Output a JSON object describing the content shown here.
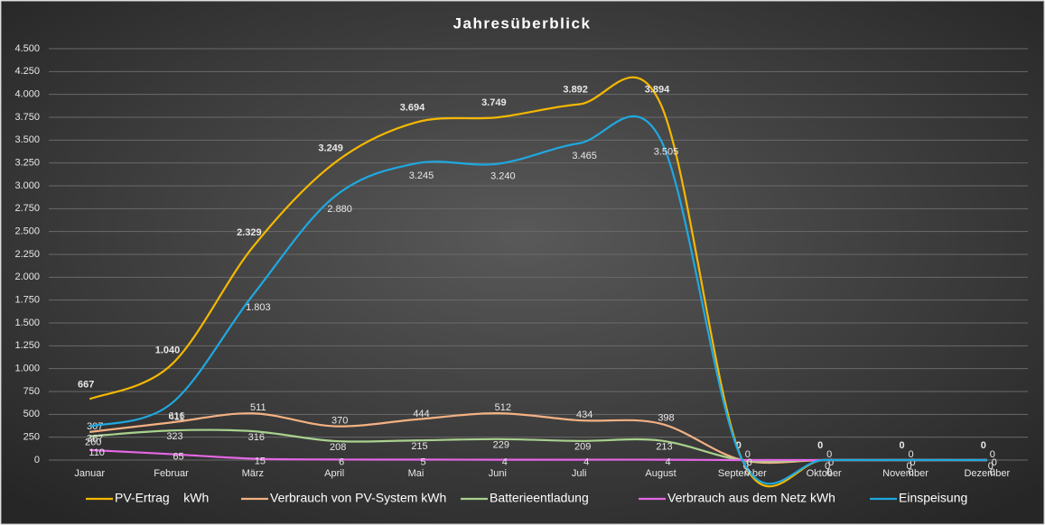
{
  "chart_data": {
    "type": "line",
    "title": "Jahresüberblick",
    "categories": [
      "Januar",
      "Februar",
      "März",
      "April",
      "Mai",
      "Juni",
      "Juli",
      "August",
      "September",
      "Oktober",
      "November",
      "Dezember"
    ],
    "series": [
      {
        "name": "PV-Ertrag    kWh",
        "color": "#f5b800",
        "values": [
          667,
          1040,
          2329,
          3249,
          3694,
          3749,
          3892,
          3894,
          0,
          0,
          0,
          0
        ],
        "value_labels": [
          "667",
          "1.040",
          "2.329",
          "3.249",
          "3.694",
          "3.749",
          "3.892",
          "3.894",
          "0",
          "0",
          "0",
          "0"
        ]
      },
      {
        "name": "Verbrauch von PV-System kWh",
        "color": "#f4b183",
        "values": [
          307,
          411,
          511,
          370,
          444,
          512,
          434,
          398,
          0,
          0,
          0,
          0
        ]
      },
      {
        "name": "Batterieentladung",
        "color": "#a9d18e",
        "values": [
          260,
          323,
          316,
          208,
          215,
          229,
          209,
          213,
          0,
          0,
          0,
          0
        ]
      },
      {
        "name": "Verbrauch aus dem Netz kWh",
        "color": "#e567e5",
        "values": [
          110,
          65,
          15,
          6,
          5,
          4,
          4,
          4,
          0,
          0,
          0,
          0
        ]
      },
      {
        "name": "Einspeisung",
        "color": "#1fa8e0",
        "values": [
          367,
          616,
          1803,
          2880,
          3245,
          3240,
          3465,
          3505,
          0,
          0,
          0,
          0
        ],
        "value_labels": [
          "367",
          "616",
          "1.803",
          "2.880",
          "3.245",
          "3.240",
          "3.465",
          "3.505",
          "0",
          "0",
          "0",
          "0"
        ]
      }
    ],
    "ylim": [
      0,
      4500
    ],
    "yticks": [
      0,
      250,
      500,
      750,
      {
        "value": 1000,
        "label": "1.000"
      },
      {
        "value": 1250,
        "label": "1.250"
      },
      {
        "value": 1500,
        "label": "1.500"
      },
      {
        "value": 1750,
        "label": "1.750"
      },
      {
        "value": 2000,
        "label": "2.000"
      },
      {
        "value": 2250,
        "label": "2.250"
      },
      {
        "value": 2500,
        "label": "2.500"
      },
      {
        "value": 2750,
        "label": "2.750"
      },
      {
        "value": 3000,
        "label": "3.000"
      },
      {
        "value": 3250,
        "label": "3.250"
      },
      {
        "value": 3500,
        "label": "3.500"
      },
      {
        "value": 3750,
        "label": "3.750"
      },
      {
        "value": 4000,
        "label": "4.000"
      },
      {
        "value": 4250,
        "label": "4.250"
      },
      {
        "value": 4500,
        "label": "4.500"
      }
    ],
    "grid": true,
    "legend": "bottom"
  }
}
